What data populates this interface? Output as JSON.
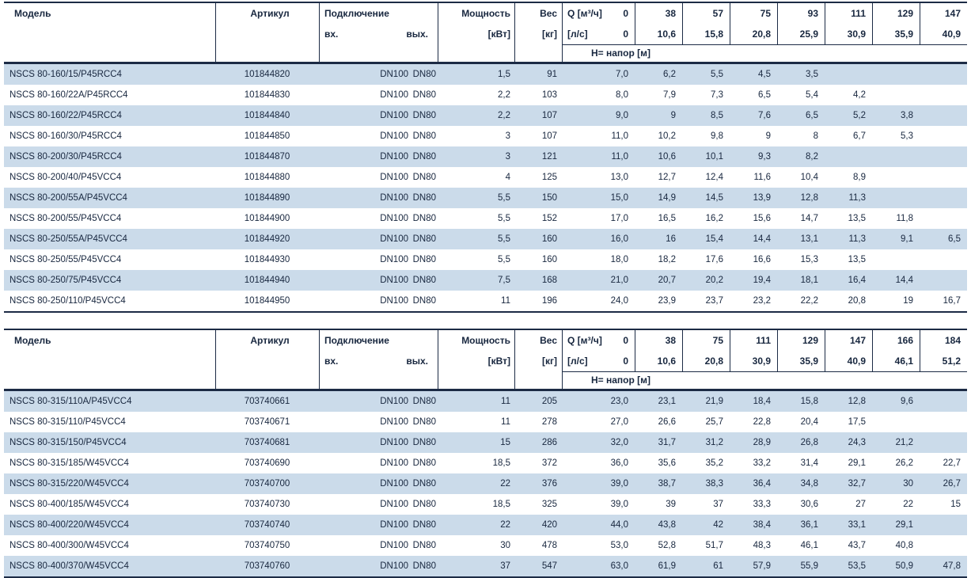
{
  "document": {
    "type": "pump-specification-catalog-page",
    "colors": {
      "stripe": "#cbdbea",
      "border": "#1c2b45",
      "text": "#18273f",
      "background": "#ffffff"
    }
  },
  "shared_headers": {
    "model": "Модель",
    "article": "Артикул",
    "connection": "Подключение",
    "conn_in": "вх.",
    "conn_out": "вых.",
    "power": "Мощность",
    "power_unit": "[кВт]",
    "weight": "Вес",
    "weight_unit": "[кг]",
    "flow_label": "Q [м³/ч]",
    "flow_zero": "0",
    "ls_label": "[л/с]",
    "ls_zero": "0",
    "head_label": "H= напор [м]"
  },
  "tables": [
    {
      "flow_m3h": [
        "38",
        "57",
        "75",
        "93",
        "111",
        "129",
        "147"
      ],
      "flow_ls": [
        "10,6",
        "15,8",
        "20,8",
        "25,9",
        "30,9",
        "35,9",
        "40,9"
      ],
      "rows": [
        {
          "model": "NSCS 80-160/15/P45RCC4",
          "article": "101844820",
          "conn_in": "DN100",
          "conn_out": "DN80",
          "power": "1,5",
          "weight": "91",
          "head": [
            "7,0",
            "6,2",
            "5,5",
            "4,5",
            "3,5",
            "",
            "",
            ""
          ]
        },
        {
          "model": "NSCS 80-160/22A/P45RCC4",
          "article": "101844830",
          "conn_in": "DN100",
          "conn_out": "DN80",
          "power": "2,2",
          "weight": "103",
          "head": [
            "8,0",
            "7,9",
            "7,3",
            "6,5",
            "5,4",
            "4,2",
            "",
            ""
          ]
        },
        {
          "model": "NSCS 80-160/22/P45RCC4",
          "article": "101844840",
          "conn_in": "DN100",
          "conn_out": "DN80",
          "power": "2,2",
          "weight": "107",
          "head": [
            "9,0",
            "9",
            "8,5",
            "7,6",
            "6,5",
            "5,2",
            "3,8",
            ""
          ]
        },
        {
          "model": "NSCS 80-160/30/P45RCC4",
          "article": "101844850",
          "conn_in": "DN100",
          "conn_out": "DN80",
          "power": "3",
          "weight": "107",
          "head": [
            "11,0",
            "10,2",
            "9,8",
            "9",
            "8",
            "6,7",
            "5,3",
            ""
          ]
        },
        {
          "model": "NSCS 80-200/30/P45RCC4",
          "article": "101844870",
          "conn_in": "DN100",
          "conn_out": "DN80",
          "power": "3",
          "weight": "121",
          "head": [
            "11,0",
            "10,6",
            "10,1",
            "9,3",
            "8,2",
            "",
            "",
            ""
          ]
        },
        {
          "model": "NSCS 80-200/40/P45VCC4",
          "article": "101844880",
          "conn_in": "DN100",
          "conn_out": "DN80",
          "power": "4",
          "weight": "125",
          "head": [
            "13,0",
            "12,7",
            "12,4",
            "11,6",
            "10,4",
            "8,9",
            "",
            ""
          ]
        },
        {
          "model": "NSCS 80-200/55A/P45VCC4",
          "article": "101844890",
          "conn_in": "DN100",
          "conn_out": "DN80",
          "power": "5,5",
          "weight": "150",
          "head": [
            "15,0",
            "14,9",
            "14,5",
            "13,9",
            "12,8",
            "11,3",
            "",
            ""
          ]
        },
        {
          "model": "NSCS 80-200/55/P45VCC4",
          "article": "101844900",
          "conn_in": "DN100",
          "conn_out": "DN80",
          "power": "5,5",
          "weight": "152",
          "head": [
            "17,0",
            "16,5",
            "16,2",
            "15,6",
            "14,7",
            "13,5",
            "11,8",
            ""
          ]
        },
        {
          "model": "NSCS 80-250/55A/P45VCC4",
          "article": "101844920",
          "conn_in": "DN100",
          "conn_out": "DN80",
          "power": "5,5",
          "weight": "160",
          "head": [
            "16,0",
            "16",
            "15,4",
            "14,4",
            "13,1",
            "11,3",
            "9,1",
            "6,5"
          ]
        },
        {
          "model": "NSCS 80-250/55/P45VCC4",
          "article": "101844930",
          "conn_in": "DN100",
          "conn_out": "DN80",
          "power": "5,5",
          "weight": "160",
          "head": [
            "18,0",
            "18,2",
            "17,6",
            "16,6",
            "15,3",
            "13,5",
            "",
            ""
          ]
        },
        {
          "model": "NSCS 80-250/75/P45VCC4",
          "article": "101844940",
          "conn_in": "DN100",
          "conn_out": "DN80",
          "power": "7,5",
          "weight": "168",
          "head": [
            "21,0",
            "20,7",
            "20,2",
            "19,4",
            "18,1",
            "16,4",
            "14,4",
            ""
          ]
        },
        {
          "model": "NSCS 80-250/110/P45VCC4",
          "article": "101844950",
          "conn_in": "DN100",
          "conn_out": "DN80",
          "power": "11",
          "weight": "196",
          "head": [
            "24,0",
            "23,9",
            "23,7",
            "23,2",
            "22,2",
            "20,8",
            "19",
            "16,7"
          ]
        }
      ]
    },
    {
      "flow_m3h": [
        "38",
        "75",
        "111",
        "129",
        "147",
        "166",
        "184"
      ],
      "flow_ls": [
        "10,6",
        "20,8",
        "30,9",
        "35,9",
        "40,9",
        "46,1",
        "51,2"
      ],
      "rows": [
        {
          "model": "NSCS 80-315/110A/P45VCC4",
          "article": "703740661",
          "conn_in": "DN100",
          "conn_out": "DN80",
          "power": "11",
          "weight": "205",
          "head": [
            "23,0",
            "23,1",
            "21,9",
            "18,4",
            "15,8",
            "12,8",
            "9,6",
            ""
          ]
        },
        {
          "model": "NSCS 80-315/110/P45VCC4",
          "article": "703740671",
          "conn_in": "DN100",
          "conn_out": "DN80",
          "power": "11",
          "weight": "278",
          "head": [
            "27,0",
            "26,6",
            "25,7",
            "22,8",
            "20,4",
            "17,5",
            "",
            ""
          ]
        },
        {
          "model": "NSCS 80-315/150/P45VCC4",
          "article": "703740681",
          "conn_in": "DN100",
          "conn_out": "DN80",
          "power": "15",
          "weight": "286",
          "head": [
            "32,0",
            "31,7",
            "31,2",
            "28,9",
            "26,8",
            "24,3",
            "21,2",
            ""
          ]
        },
        {
          "model": "NSCS 80-315/185/W45VCC4",
          "article": "703740690",
          "conn_in": "DN100",
          "conn_out": "DN80",
          "power": "18,5",
          "weight": "372",
          "head": [
            "36,0",
            "35,6",
            "35,2",
            "33,2",
            "31,4",
            "29,1",
            "26,2",
            "22,7"
          ]
        },
        {
          "model": "NSCS 80-315/220/W45VCC4",
          "article": "703740700",
          "conn_in": "DN100",
          "conn_out": "DN80",
          "power": "22",
          "weight": "376",
          "head": [
            "39,0",
            "38,7",
            "38,3",
            "36,4",
            "34,8",
            "32,7",
            "30",
            "26,7"
          ]
        },
        {
          "model": "NSCS 80-400/185/W45VCC4",
          "article": "703740730",
          "conn_in": "DN100",
          "conn_out": "DN80",
          "power": "18,5",
          "weight": "325",
          "head": [
            "39,0",
            "39",
            "37",
            "33,3",
            "30,6",
            "27",
            "22",
            "15"
          ]
        },
        {
          "model": "NSCS 80-400/220/W45VCC4",
          "article": "703740740",
          "conn_in": "DN100",
          "conn_out": "DN80",
          "power": "22",
          "weight": "420",
          "head": [
            "44,0",
            "43,8",
            "42",
            "38,4",
            "36,1",
            "33,1",
            "29,1",
            ""
          ]
        },
        {
          "model": "NSCS 80-400/300/W45VCC4",
          "article": "703740750",
          "conn_in": "DN100",
          "conn_out": "DN80",
          "power": "30",
          "weight": "478",
          "head": [
            "53,0",
            "52,8",
            "51,7",
            "48,3",
            "46,1",
            "43,7",
            "40,8",
            ""
          ]
        },
        {
          "model": "NSCS 80-400/370/W45VCC4",
          "article": "703740760",
          "conn_in": "DN100",
          "conn_out": "DN80",
          "power": "37",
          "weight": "547",
          "head": [
            "63,0",
            "61,9",
            "61",
            "57,9",
            "55,9",
            "53,5",
            "50,9",
            "47,8"
          ]
        }
      ]
    }
  ]
}
